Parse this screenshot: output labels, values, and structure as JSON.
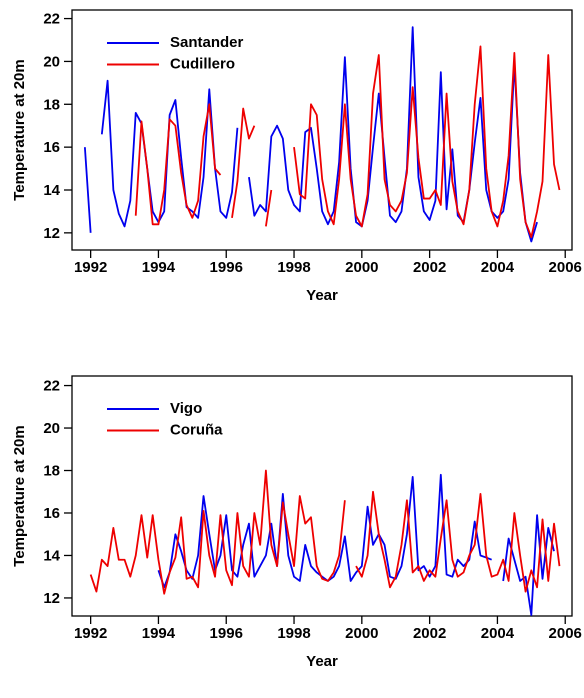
{
  "chart_data": [
    {
      "type": "line",
      "xlabel": "Year",
      "ylabel": "Temperature at 20m",
      "x": [
        1991.83,
        1992,
        1992.17,
        1992.33,
        1992.5,
        1992.67,
        1992.83,
        1993,
        1993.17,
        1993.33,
        1993.5,
        1993.67,
        1993.83,
        1994,
        1994.17,
        1994.33,
        1994.5,
        1994.67,
        1994.83,
        1995,
        1995.17,
        1995.33,
        1995.5,
        1995.67,
        1995.83,
        1996,
        1996.17,
        1996.33,
        1996.5,
        1996.67,
        1996.83,
        1997,
        1997.17,
        1997.33,
        1997.5,
        1997.67,
        1997.83,
        1998,
        1998.17,
        1998.33,
        1998.5,
        1998.67,
        1998.83,
        1999,
        1999.17,
        1999.33,
        1999.5,
        1999.67,
        1999.83,
        2000,
        2000.17,
        2000.33,
        2000.5,
        2000.67,
        2000.83,
        2001,
        2001.17,
        2001.33,
        2001.5,
        2001.67,
        2001.83,
        2002,
        2002.17,
        2002.33,
        2002.5,
        2002.67,
        2002.83,
        2003,
        2003.17,
        2003.33,
        2003.5,
        2003.67,
        2003.83,
        2004,
        2004.17,
        2004.33,
        2004.5,
        2004.67,
        2004.83,
        2005,
        2005.17,
        2005.33,
        2005.5,
        2005.67,
        2005.83
      ],
      "series": [
        {
          "name": "Santander",
          "color": "#0000ee",
          "values": [
            16.0,
            12.0,
            null,
            16.6,
            19.1,
            14.0,
            12.9,
            12.3,
            13.5,
            17.6,
            17.1,
            15.0,
            13.0,
            12.5,
            13.0,
            17.5,
            18.2,
            15.5,
            13.2,
            13.0,
            12.7,
            14.6,
            18.7,
            15.0,
            13.0,
            12.7,
            13.9,
            16.9,
            null,
            14.6,
            12.8,
            13.3,
            13.0,
            16.5,
            17.0,
            16.4,
            14.0,
            13.3,
            13.0,
            16.7,
            16.9,
            15.0,
            13.0,
            12.4,
            13.0,
            15.3,
            20.2,
            15.0,
            12.5,
            12.3,
            13.5,
            16.0,
            18.5,
            15.5,
            12.8,
            12.5,
            13.0,
            15.0,
            21.6,
            14.6,
            13.0,
            12.6,
            13.5,
            19.5,
            13.1,
            15.9,
            12.8,
            12.5,
            14.0,
            16.2,
            18.3,
            14.0,
            13.0,
            12.7,
            13.0,
            14.5,
            19.9,
            14.8,
            12.5,
            11.6,
            12.5,
            null,
            null,
            null,
            null
          ]
        },
        {
          "name": "Cudillero",
          "color": "#ee0000",
          "values": [
            null,
            null,
            null,
            null,
            null,
            null,
            null,
            null,
            null,
            12.8,
            17.2,
            15.0,
            12.4,
            12.4,
            14.0,
            17.3,
            17.0,
            14.8,
            13.3,
            12.7,
            13.5,
            16.5,
            18.0,
            15.0,
            14.7,
            null,
            12.7,
            14.4,
            17.8,
            16.4,
            17.0,
            null,
            12.3,
            14.0,
            null,
            null,
            null,
            16.0,
            13.8,
            13.6,
            18.0,
            17.5,
            14.5,
            13.0,
            12.4,
            14.5,
            18.0,
            14.5,
            12.8,
            12.3,
            13.8,
            18.5,
            20.3,
            14.5,
            13.3,
            13.0,
            13.5,
            14.8,
            18.8,
            15.5,
            13.6,
            13.6,
            14.0,
            13.3,
            18.5,
            14.4,
            13.0,
            12.4,
            14.0,
            18.0,
            20.7,
            15.0,
            13.0,
            12.3,
            13.5,
            15.6,
            20.4,
            14.5,
            12.5,
            11.8,
            13.0,
            14.4,
            20.3,
            15.2,
            14.0
          ]
        }
      ],
      "xlim": [
        1991.45,
        2006.2
      ],
      "xticks": [
        1992,
        1994,
        1996,
        1998,
        2000,
        2002,
        2004,
        2006
      ],
      "ylim": [
        11.2,
        22.4
      ],
      "yticks": [
        12,
        14,
        16,
        18,
        20,
        22
      ],
      "legend": "upper left"
    },
    {
      "type": "line",
      "xlabel": "Year",
      "ylabel": "Temperature at 20m",
      "x": [
        1991.83,
        1992,
        1992.17,
        1992.33,
        1992.5,
        1992.67,
        1992.83,
        1993,
        1993.17,
        1993.33,
        1993.5,
        1993.67,
        1993.83,
        1994,
        1994.17,
        1994.33,
        1994.5,
        1994.67,
        1994.83,
        1995,
        1995.17,
        1995.33,
        1995.5,
        1995.67,
        1995.83,
        1996,
        1996.17,
        1996.33,
        1996.5,
        1996.67,
        1996.83,
        1997,
        1997.17,
        1997.33,
        1997.5,
        1997.67,
        1997.83,
        1998,
        1998.17,
        1998.33,
        1998.5,
        1998.67,
        1998.83,
        1999,
        1999.17,
        1999.33,
        1999.5,
        1999.67,
        1999.83,
        2000,
        2000.17,
        2000.33,
        2000.5,
        2000.67,
        2000.83,
        2001,
        2001.17,
        2001.33,
        2001.5,
        2001.67,
        2001.83,
        2002,
        2002.17,
        2002.33,
        2002.5,
        2002.67,
        2002.83,
        2003,
        2003.17,
        2003.33,
        2003.5,
        2003.67,
        2003.83,
        2004,
        2004.17,
        2004.33,
        2004.5,
        2004.67,
        2004.83,
        2005,
        2005.17,
        2005.33,
        2005.5,
        2005.67,
        2005.83
      ],
      "series": [
        {
          "name": "Vigo",
          "color": "#0000ee",
          "values": [
            null,
            null,
            null,
            null,
            null,
            null,
            null,
            null,
            null,
            null,
            null,
            null,
            null,
            13.3,
            12.5,
            13.2,
            15.0,
            14.2,
            13.3,
            12.9,
            14.0,
            16.8,
            15.0,
            13.3,
            14.0,
            15.9,
            13.3,
            13.0,
            14.5,
            15.5,
            13.0,
            13.5,
            14.0,
            15.5,
            13.5,
            16.9,
            14.0,
            13.0,
            12.8,
            14.5,
            13.5,
            13.2,
            13.0,
            12.8,
            13.0,
            13.5,
            14.9,
            12.8,
            13.2,
            13.5,
            16.3,
            14.5,
            15.0,
            14.5,
            13.0,
            12.9,
            13.5,
            15.0,
            17.7,
            13.3,
            13.5,
            13.0,
            13.5,
            17.8,
            13.1,
            13.0,
            13.8,
            13.5,
            13.8,
            15.6,
            14.0,
            13.9,
            13.8,
            null,
            12.8,
            14.8,
            13.8,
            12.8,
            13.0,
            11.2,
            15.9,
            12.9,
            15.3,
            14.2,
            null
          ]
        },
        {
          "name": "Coruña",
          "color": "#ee0000",
          "values": [
            null,
            13.1,
            12.3,
            13.8,
            13.5,
            15.3,
            13.8,
            13.8,
            13.0,
            14.0,
            15.9,
            13.9,
            15.9,
            13.8,
            12.2,
            13.2,
            13.9,
            15.8,
            12.9,
            13.0,
            12.5,
            16.1,
            14.0,
            13.0,
            15.9,
            13.3,
            12.6,
            16.0,
            13.5,
            13.0,
            16.0,
            14.5,
            18.0,
            14.5,
            13.5,
            16.5,
            15.0,
            13.5,
            16.8,
            15.5,
            15.8,
            13.5,
            12.9,
            12.8,
            13.2,
            14.0,
            16.6,
            null,
            13.5,
            13.0,
            14.0,
            17.0,
            15.0,
            13.8,
            12.5,
            13.0,
            14.5,
            16.6,
            13.2,
            13.5,
            12.8,
            13.3,
            13.0,
            14.8,
            16.6,
            13.8,
            13.0,
            13.2,
            14.0,
            14.5,
            16.9,
            14.0,
            13.0,
            13.1,
            13.8,
            12.8,
            16.0,
            14.0,
            12.3,
            13.3,
            12.5,
            15.7,
            12.8,
            15.5,
            13.5
          ]
        }
      ],
      "xlim": [
        1991.45,
        2006.2
      ],
      "xticks": [
        1992,
        1994,
        1996,
        1998,
        2000,
        2002,
        2004,
        2006
      ],
      "ylim": [
        11.15,
        22.45
      ],
      "yticks": [
        12,
        14,
        16,
        18,
        20,
        22
      ],
      "legend": "upper left"
    }
  ]
}
